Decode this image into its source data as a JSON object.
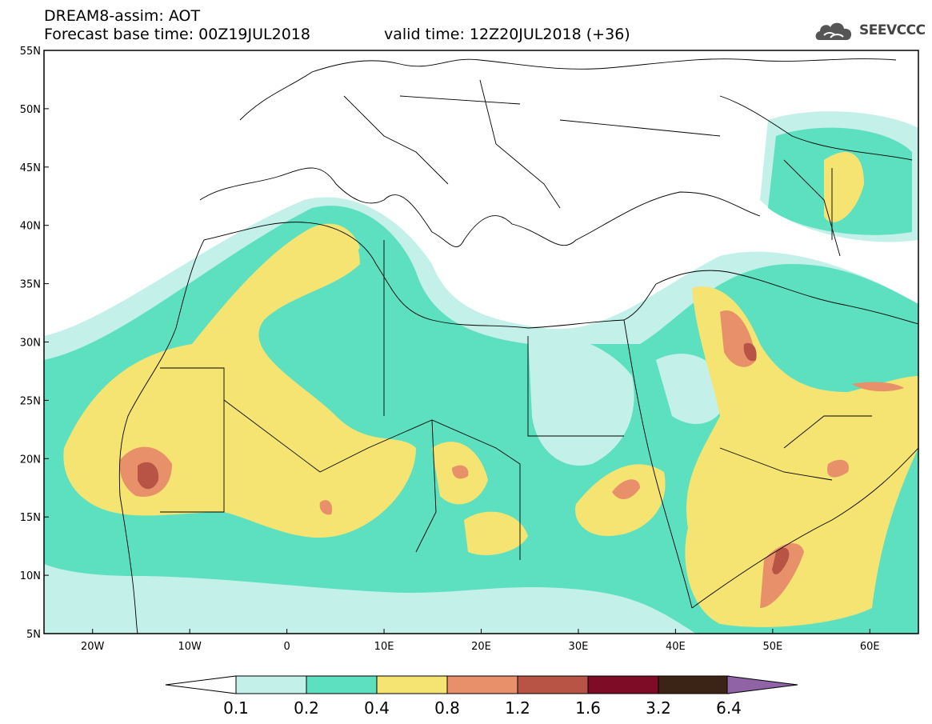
{
  "header": {
    "title": "DREAM8-assim: AOT",
    "base_time": "Forecast base time: 00Z19JUL2018",
    "valid_time": "valid time: 12Z20JUL2018 (+36)"
  },
  "logo": {
    "text": "SEEVCCC",
    "icon": "cloud-icon"
  },
  "map": {
    "lat_labels": [
      "55N",
      "50N",
      "45N",
      "40N",
      "35N",
      "30N",
      "25N",
      "20N",
      "15N",
      "10N",
      "5N"
    ],
    "lon_labels": [
      "20W",
      "10W",
      "0",
      "10E",
      "20E",
      "30E",
      "40E",
      "50E",
      "60E"
    ],
    "extent": {
      "lon": [
        -25,
        65
      ],
      "lat": [
        5,
        55
      ]
    }
  },
  "colorbar": {
    "labels": [
      "0.1",
      "0.2",
      "0.4",
      "0.8",
      "1.2",
      "1.6",
      "3.2",
      "6.4"
    ],
    "colors": [
      "#c4f0ea",
      "#5ce0c0",
      "#f5e472",
      "#e8906a",
      "#b85446",
      "#7e0c26",
      "#3b2316",
      "#8f63a6"
    ]
  },
  "colors": {
    "ocean": "#ffffff",
    "border": "#000000"
  }
}
